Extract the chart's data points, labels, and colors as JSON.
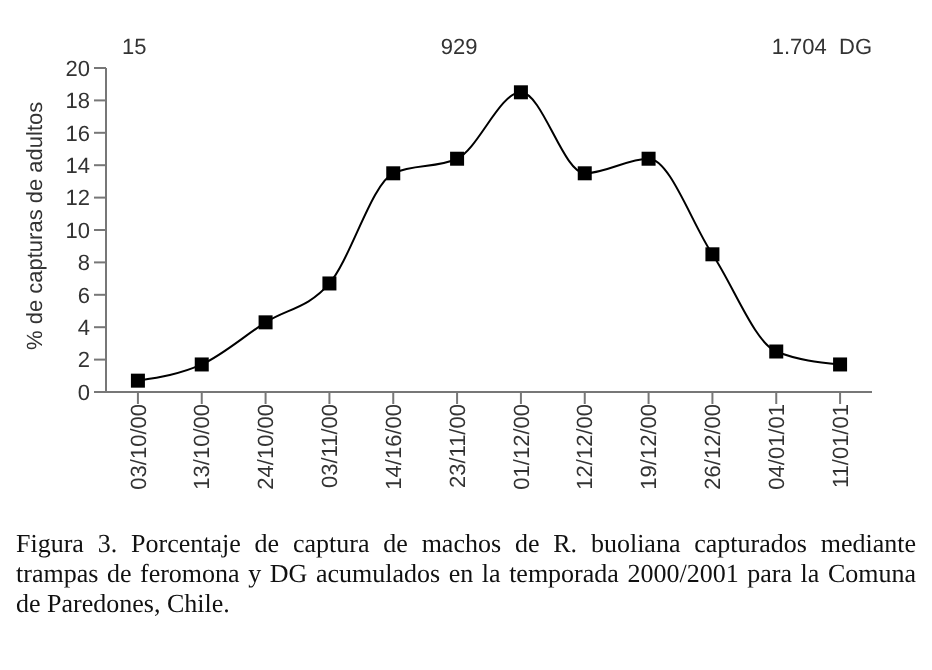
{
  "chart_data": {
    "type": "line",
    "ylabel": "% de capturas de adultos",
    "categories": [
      "03/10/00",
      "13/10/00",
      "24/10/00",
      "03/11/00",
      "14/16/00",
      "23/11/00",
      "01/12/00",
      "12/12/00",
      "19/12/00",
      "26/12/00",
      "04/01/01",
      "11/01/01"
    ],
    "series": [
      {
        "color": "#000000",
        "values": [
          0.7,
          1.7,
          4.3,
          6.7,
          13.5,
          14.4,
          18.5,
          13.5,
          14.4,
          8.5,
          2.5,
          1.7
        ]
      }
    ],
    "ylim": [
      0,
      20
    ],
    "yticks": [
      0,
      2,
      4,
      6,
      8,
      10,
      12,
      14,
      16,
      18,
      20
    ],
    "grid": false,
    "legend": false,
    "marker": "square",
    "line_style": "solid",
    "annotations": [
      "15",
      "929",
      "1.704  DG",
      "Figura 3. Porcentaje de captura de machos de R. buoliana capturados mediante trampas de feromona y DG acumulados en la temporada 2000/2001 para la Comuna de Paredones, Chile."
    ]
  }
}
